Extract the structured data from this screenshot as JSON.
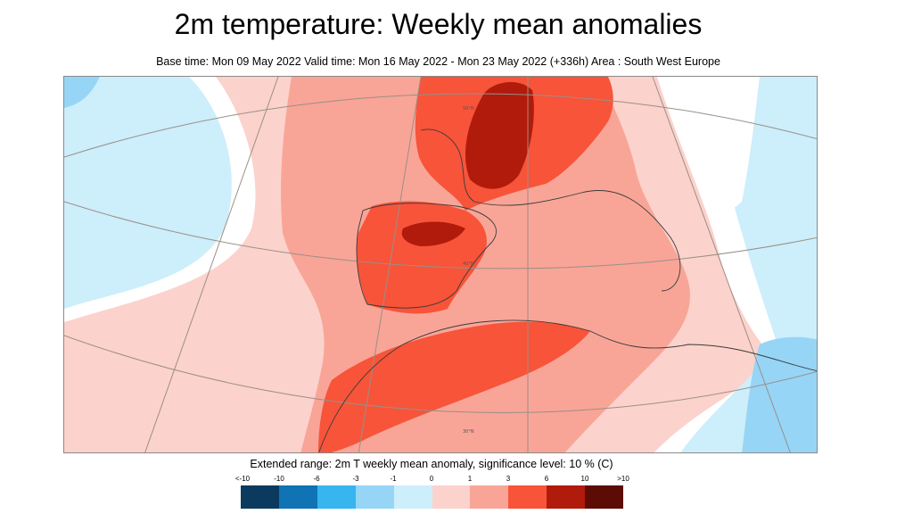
{
  "title": "2m temperature: Weekly mean anomalies",
  "subtitle": "Base time: Mon 09 May 2022 Valid time: Mon 16 May 2022 - Mon 23 May 2022 (+336h) Area : South West Europe",
  "map": {
    "area": "South West Europe",
    "latitude_labels": [
      "50°N",
      "40°N",
      "30°N"
    ]
  },
  "legend": {
    "title": "Extended range: 2m T weekly mean anomaly, significance level: 10 % (C)",
    "labels": [
      "<-10",
      "-10",
      "-6",
      "-3",
      "-1",
      "0",
      "1",
      "3",
      "6",
      "10",
      ">10"
    ],
    "colors": [
      "#0a3a5e",
      "#0f73b4",
      "#36b5ef",
      "#96d5f6",
      "#cdeefb",
      "#ffffff",
      "#fcd2cc",
      "#f8a597",
      "#f7543a",
      "#b11b0c",
      "#5c0c05"
    ]
  }
}
